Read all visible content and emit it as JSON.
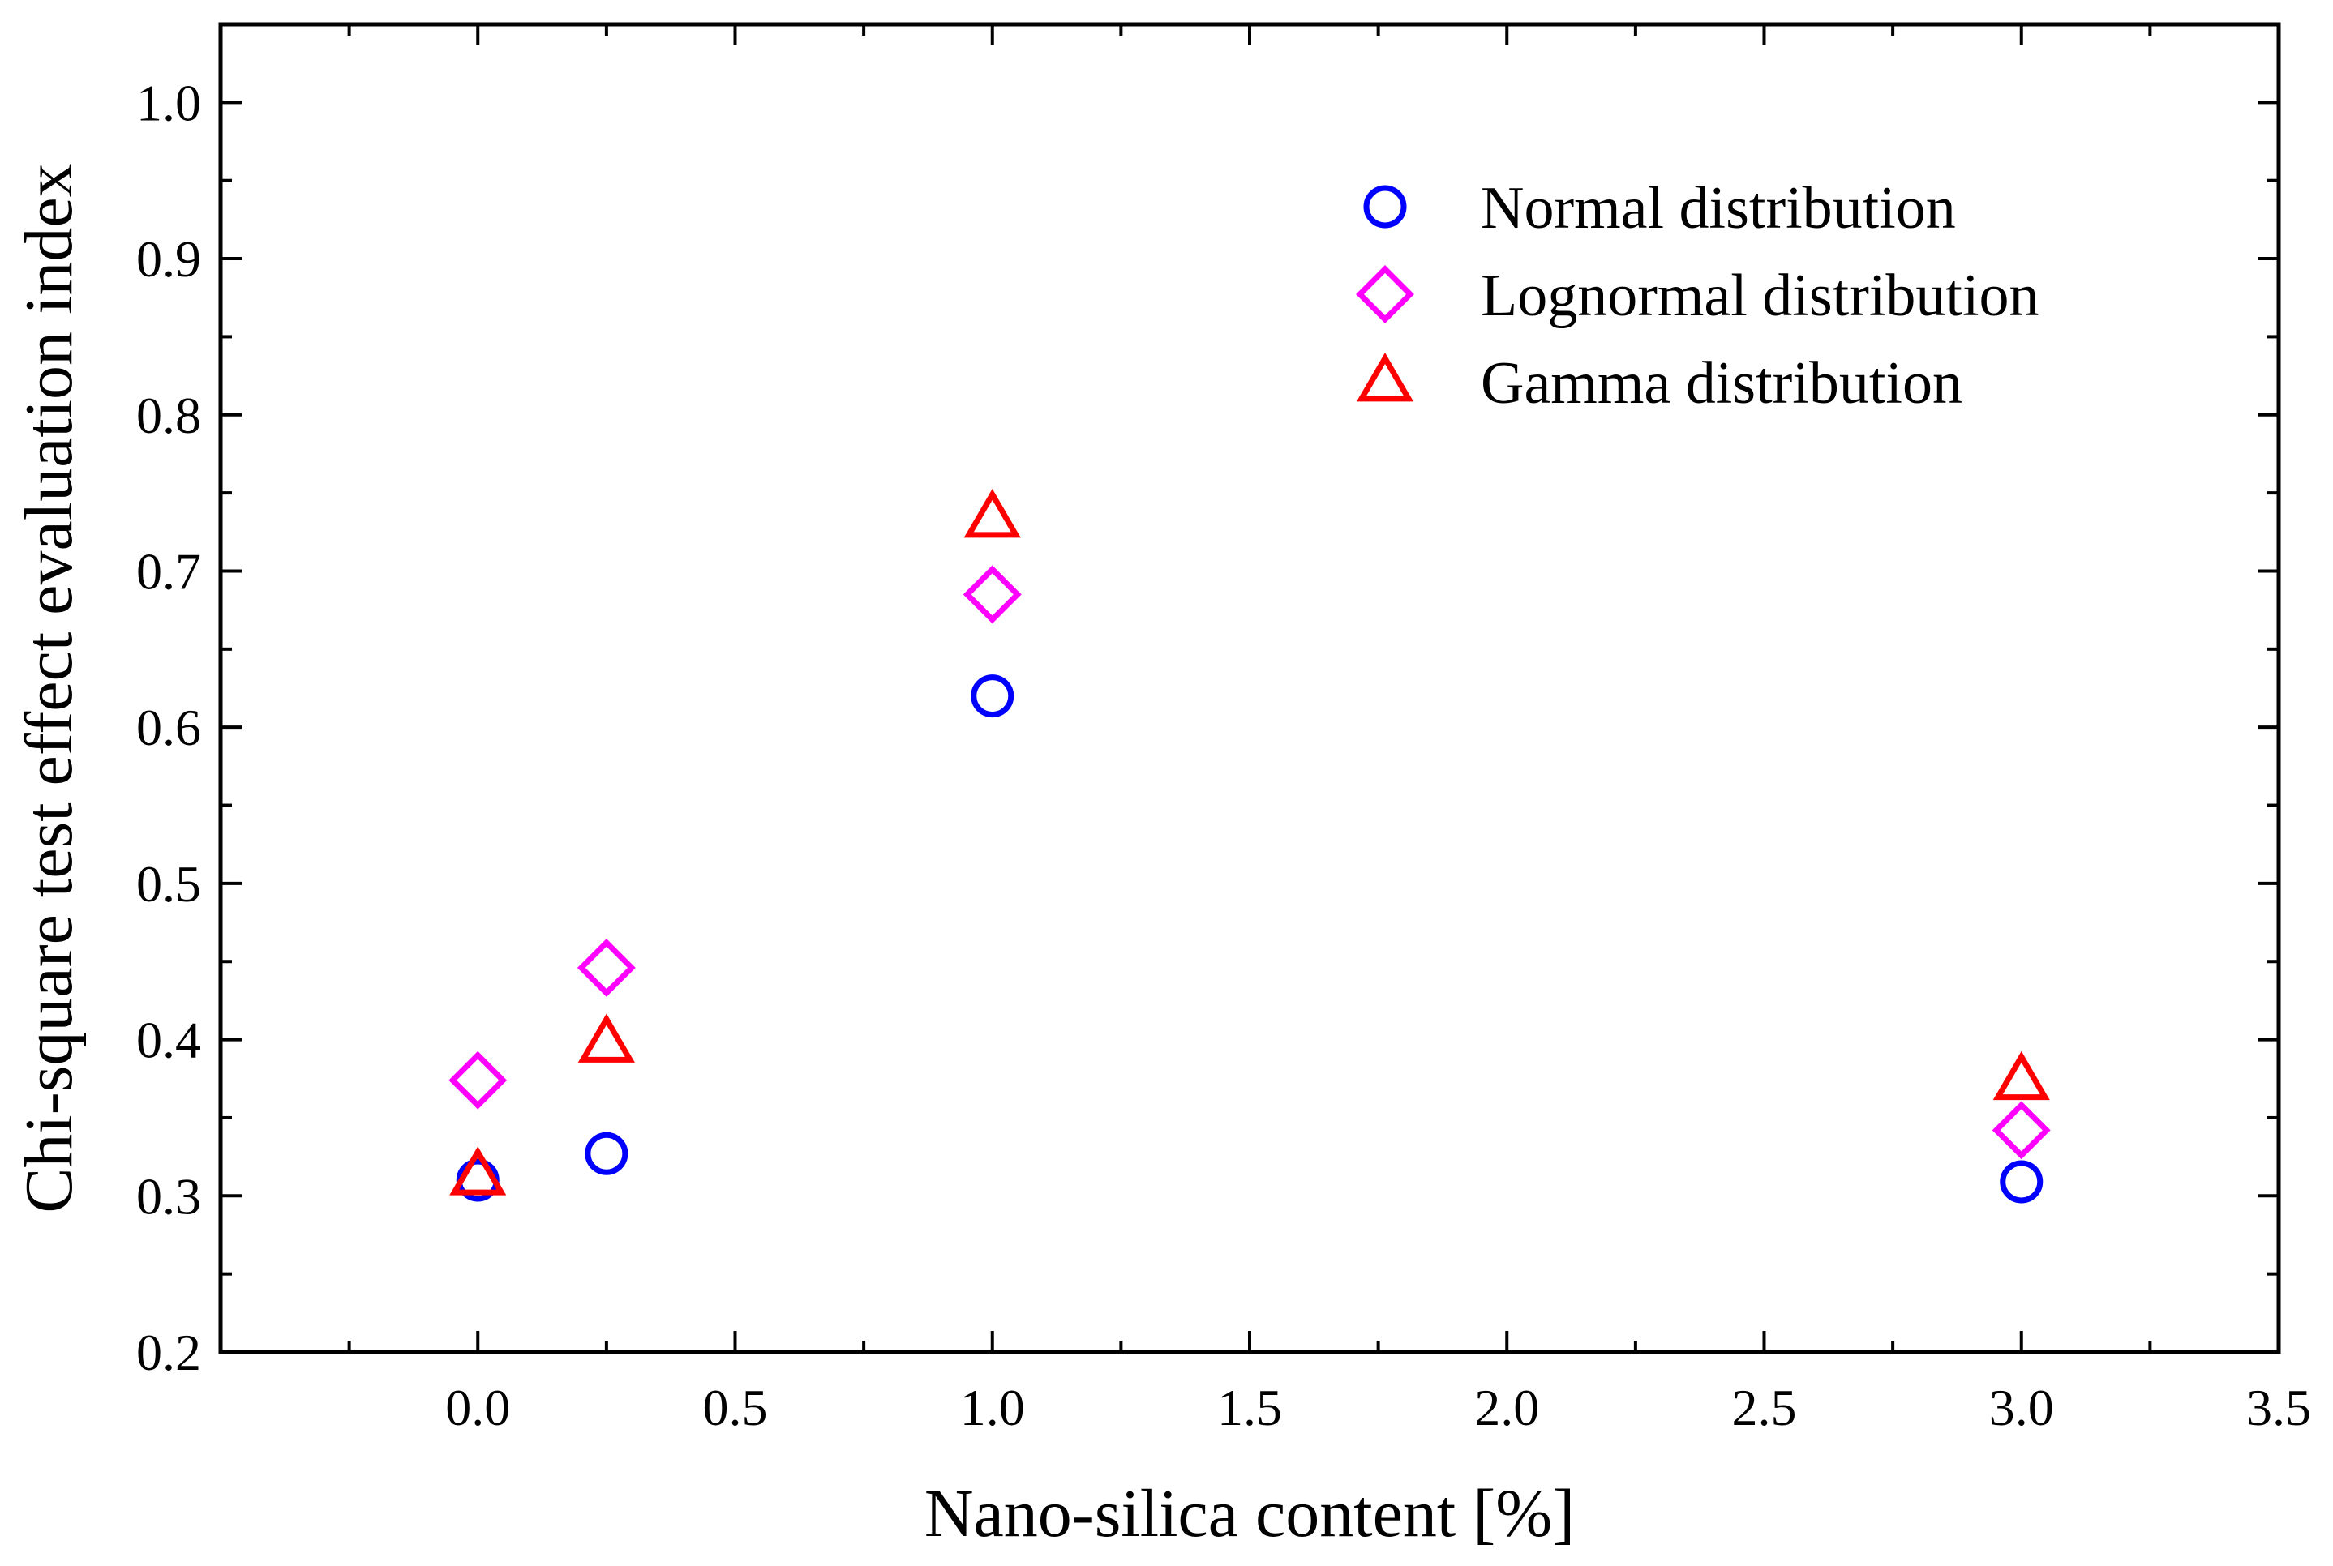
{
  "chart_data": {
    "type": "scatter",
    "title": "",
    "xlabel": "Nano-silica content [%]",
    "ylabel": "Chi-square test effect evaluation index",
    "xlim": [
      -0.5,
      3.5
    ],
    "ylim": [
      0.2,
      1.05
    ],
    "xticks": [
      0.0,
      0.5,
      1.0,
      1.5,
      2.0,
      2.5,
      3.0,
      3.5
    ],
    "xtick_labels": [
      "0.0",
      "0.5",
      "1.0",
      "1.5",
      "2.0",
      "2.5",
      "3.0",
      "3.5"
    ],
    "yticks": [
      0.2,
      0.3,
      0.4,
      0.5,
      0.6,
      0.7,
      0.8,
      0.9,
      1.0
    ],
    "ytick_labels": [
      "0.2",
      "0.3",
      "0.4",
      "0.5",
      "0.6",
      "0.7",
      "0.8",
      "0.9",
      "1.0"
    ],
    "grid": false,
    "legend_position": "top-right",
    "x": [
      0,
      0.25,
      1,
      3
    ],
    "series": [
      {
        "name": "Normal distribution",
        "marker": "circle",
        "color": "#0000ff",
        "values": [
          0.31,
          0.327,
          0.62,
          0.309
        ]
      },
      {
        "name": "Lognormal distribution",
        "marker": "diamond",
        "color": "#ff00ff",
        "values": [
          0.374,
          0.446,
          0.685,
          0.342
        ]
      },
      {
        "name": "Gamma distribution",
        "marker": "triangle",
        "color": "#ff0000",
        "values": [
          0.313,
          0.398,
          0.734,
          0.374
        ]
      }
    ]
  }
}
